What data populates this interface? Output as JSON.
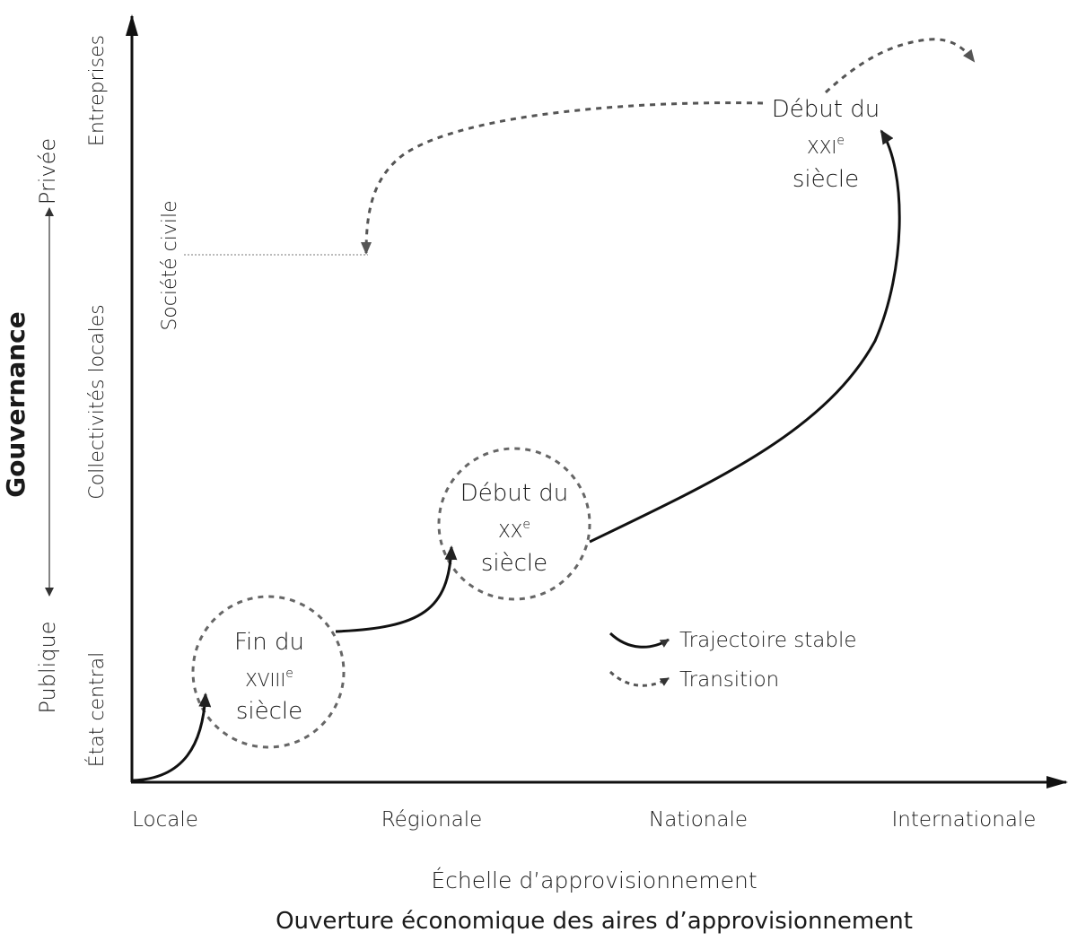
{
  "diagram": {
    "y_axis": {
      "title": "Gouvernance",
      "pole_low": "Publique",
      "pole_high": "Privée",
      "levels": [
        "État central",
        "Collectivités locales",
        "Société civile",
        "Entreprises"
      ]
    },
    "x_axis": {
      "title": "Ouverture économique des aires d’approvisionnement",
      "subtitle": "Échelle d’approvisionnement",
      "levels": [
        "Locale",
        "Régionale",
        "Nationale",
        "Internationale"
      ]
    },
    "periods": [
      {
        "line1": "Fin du",
        "century": "XVIII",
        "sup": "e",
        "line3": "siècle"
      },
      {
        "line1": "Début du",
        "century": "XX",
        "sup": "e",
        "line3": "siècle"
      },
      {
        "line1": "Début du",
        "century": "XXI",
        "sup": "e",
        "line3": "siècle"
      }
    ],
    "legend": {
      "stable": "Trajectoire stable",
      "transition": "Transition"
    }
  }
}
